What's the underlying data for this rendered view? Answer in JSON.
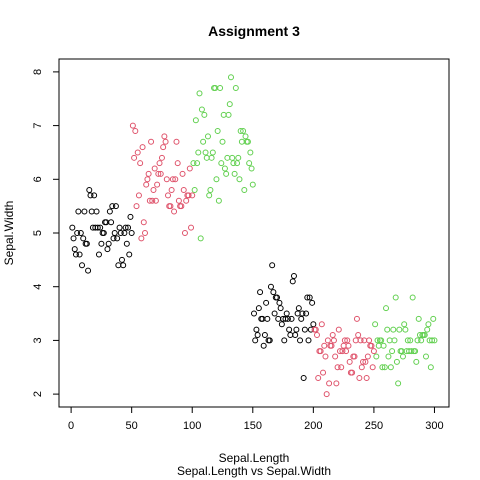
{
  "chart_data": {
    "type": "scatter",
    "title": "Assignment 3",
    "xlabel": "Sepal.Length",
    "ylabel": "Sepal.Width",
    "subtitle": "Sepal.Length vs Sepal.Width",
    "xlim": [
      -10,
      312
    ],
    "ylim": [
      1.76,
      8.24
    ],
    "xticks": [
      0,
      50,
      100,
      150,
      200,
      250,
      300
    ],
    "yticks": [
      2,
      3,
      4,
      5,
      6,
      7,
      8
    ],
    "grid": false,
    "marker": "open-circle",
    "series": [
      {
        "color": "#000000",
        "points": [
          [
            1,
            5.1
          ],
          [
            2,
            4.9
          ],
          [
            3,
            4.7
          ],
          [
            4,
            4.6
          ],
          [
            5,
            5.0
          ],
          [
            6,
            5.4
          ],
          [
            7,
            4.6
          ],
          [
            8,
            5.0
          ],
          [
            9,
            4.4
          ],
          [
            10,
            4.9
          ],
          [
            11,
            5.4
          ],
          [
            12,
            4.8
          ],
          [
            13,
            4.8
          ],
          [
            14,
            4.3
          ],
          [
            15,
            5.8
          ],
          [
            16,
            5.7
          ],
          [
            17,
            5.4
          ],
          [
            18,
            5.1
          ],
          [
            19,
            5.7
          ],
          [
            20,
            5.1
          ],
          [
            21,
            5.4
          ],
          [
            22,
            5.1
          ],
          [
            23,
            4.6
          ],
          [
            24,
            5.1
          ],
          [
            25,
            4.8
          ],
          [
            26,
            5.0
          ],
          [
            27,
            5.0
          ],
          [
            28,
            5.2
          ],
          [
            29,
            5.2
          ],
          [
            30,
            4.7
          ],
          [
            31,
            4.8
          ],
          [
            32,
            5.4
          ],
          [
            33,
            5.2
          ],
          [
            34,
            5.5
          ],
          [
            35,
            4.9
          ],
          [
            36,
            5.0
          ],
          [
            37,
            5.5
          ],
          [
            38,
            4.9
          ],
          [
            39,
            4.4
          ],
          [
            40,
            5.1
          ],
          [
            41,
            5.0
          ],
          [
            42,
            4.5
          ],
          [
            43,
            4.4
          ],
          [
            44,
            5.0
          ],
          [
            45,
            5.1
          ],
          [
            46,
            4.8
          ],
          [
            47,
            5.1
          ],
          [
            48,
            4.6
          ],
          [
            49,
            5.3
          ],
          [
            50,
            5.0
          ],
          [
            151,
            3.5
          ],
          [
            152,
            3.0
          ],
          [
            153,
            3.2
          ],
          [
            154,
            3.1
          ],
          [
            155,
            3.6
          ],
          [
            156,
            3.9
          ],
          [
            157,
            3.4
          ],
          [
            158,
            3.4
          ],
          [
            159,
            2.9
          ],
          [
            160,
            3.1
          ],
          [
            161,
            3.7
          ],
          [
            162,
            3.4
          ],
          [
            163,
            3.0
          ],
          [
            164,
            3.0
          ],
          [
            165,
            4.0
          ],
          [
            166,
            4.4
          ],
          [
            167,
            3.9
          ],
          [
            168,
            3.5
          ],
          [
            169,
            3.8
          ],
          [
            170,
            3.8
          ],
          [
            171,
            3.4
          ],
          [
            172,
            3.7
          ],
          [
            173,
            3.6
          ],
          [
            174,
            3.3
          ],
          [
            175,
            3.4
          ],
          [
            176,
            3.0
          ],
          [
            177,
            3.4
          ],
          [
            178,
            3.5
          ],
          [
            179,
            3.4
          ],
          [
            180,
            3.2
          ],
          [
            181,
            3.1
          ],
          [
            182,
            3.4
          ],
          [
            183,
            4.1
          ],
          [
            184,
            4.2
          ],
          [
            185,
            3.1
          ],
          [
            186,
            3.2
          ],
          [
            187,
            3.5
          ],
          [
            188,
            3.6
          ],
          [
            189,
            3.0
          ],
          [
            190,
            3.4
          ],
          [
            191,
            3.5
          ],
          [
            192,
            2.3
          ],
          [
            193,
            3.2
          ],
          [
            194,
            3.5
          ],
          [
            195,
            3.8
          ],
          [
            196,
            3.0
          ],
          [
            197,
            3.8
          ],
          [
            198,
            3.2
          ],
          [
            199,
            3.7
          ],
          [
            200,
            3.3
          ]
        ]
      },
      {
        "color": "#DF536B",
        "points": [
          [
            51,
            7.0
          ],
          [
            52,
            6.4
          ],
          [
            53,
            6.9
          ],
          [
            54,
            5.5
          ],
          [
            55,
            6.5
          ],
          [
            56,
            5.7
          ],
          [
            57,
            6.3
          ],
          [
            58,
            4.9
          ],
          [
            59,
            6.6
          ],
          [
            60,
            5.2
          ],
          [
            61,
            5.0
          ],
          [
            62,
            5.9
          ],
          [
            63,
            6.0
          ],
          [
            64,
            6.1
          ],
          [
            65,
            5.6
          ],
          [
            66,
            6.7
          ],
          [
            67,
            5.6
          ],
          [
            68,
            5.8
          ],
          [
            69,
            6.2
          ],
          [
            70,
            5.6
          ],
          [
            71,
            5.9
          ],
          [
            72,
            6.1
          ],
          [
            73,
            6.3
          ],
          [
            74,
            6.1
          ],
          [
            75,
            6.4
          ],
          [
            76,
            6.6
          ],
          [
            77,
            6.8
          ],
          [
            78,
            6.7
          ],
          [
            79,
            6.0
          ],
          [
            80,
            5.7
          ],
          [
            81,
            5.5
          ],
          [
            82,
            5.5
          ],
          [
            83,
            5.8
          ],
          [
            84,
            6.0
          ],
          [
            85,
            5.4
          ],
          [
            86,
            6.0
          ],
          [
            87,
            6.7
          ],
          [
            88,
            6.3
          ],
          [
            89,
            5.6
          ],
          [
            90,
            5.5
          ],
          [
            91,
            5.5
          ],
          [
            92,
            6.1
          ],
          [
            93,
            5.8
          ],
          [
            94,
            5.0
          ],
          [
            95,
            5.6
          ],
          [
            96,
            5.7
          ],
          [
            97,
            5.7
          ],
          [
            98,
            6.2
          ],
          [
            99,
            5.1
          ],
          [
            100,
            5.7
          ],
          [
            201,
            3.2
          ],
          [
            202,
            3.2
          ],
          [
            203,
            3.1
          ],
          [
            204,
            2.3
          ],
          [
            205,
            2.8
          ],
          [
            206,
            2.8
          ],
          [
            207,
            3.3
          ],
          [
            208,
            2.4
          ],
          [
            209,
            2.9
          ],
          [
            210,
            2.7
          ],
          [
            211,
            2.0
          ],
          [
            212,
            3.0
          ],
          [
            213,
            2.2
          ],
          [
            214,
            2.9
          ],
          [
            215,
            2.9
          ],
          [
            216,
            3.1
          ],
          [
            217,
            3.0
          ],
          [
            218,
            2.7
          ],
          [
            219,
            2.2
          ],
          [
            220,
            2.5
          ],
          [
            221,
            3.2
          ],
          [
            222,
            2.8
          ],
          [
            223,
            2.5
          ],
          [
            224,
            2.8
          ],
          [
            225,
            2.9
          ],
          [
            226,
            3.0
          ],
          [
            227,
            2.8
          ],
          [
            228,
            3.0
          ],
          [
            229,
            2.9
          ],
          [
            230,
            2.6
          ],
          [
            231,
            2.4
          ],
          [
            232,
            2.4
          ],
          [
            233,
            2.7
          ],
          [
            234,
            2.7
          ],
          [
            235,
            3.0
          ],
          [
            236,
            3.4
          ],
          [
            237,
            3.1
          ],
          [
            238,
            2.3
          ],
          [
            239,
            3.0
          ],
          [
            240,
            2.5
          ],
          [
            241,
            2.6
          ],
          [
            242,
            3.0
          ],
          [
            243,
            2.6
          ],
          [
            244,
            2.3
          ],
          [
            245,
            2.7
          ],
          [
            246,
            3.0
          ],
          [
            247,
            2.9
          ],
          [
            248,
            2.9
          ],
          [
            249,
            2.5
          ],
          [
            250,
            2.8
          ]
        ]
      },
      {
        "color": "#61D04F",
        "points": [
          [
            101,
            6.3
          ],
          [
            102,
            5.8
          ],
          [
            103,
            7.1
          ],
          [
            104,
            6.3
          ],
          [
            105,
            6.5
          ],
          [
            106,
            7.6
          ],
          [
            107,
            4.9
          ],
          [
            108,
            7.3
          ],
          [
            109,
            6.7
          ],
          [
            110,
            7.2
          ],
          [
            111,
            6.5
          ],
          [
            112,
            6.4
          ],
          [
            113,
            6.8
          ],
          [
            114,
            5.7
          ],
          [
            115,
            5.8
          ],
          [
            116,
            6.4
          ],
          [
            117,
            6.5
          ],
          [
            118,
            7.7
          ],
          [
            119,
            7.7
          ],
          [
            120,
            6.0
          ],
          [
            121,
            6.9
          ],
          [
            122,
            5.6
          ],
          [
            123,
            7.7
          ],
          [
            124,
            6.3
          ],
          [
            125,
            6.7
          ],
          [
            126,
            7.2
          ],
          [
            127,
            6.2
          ],
          [
            128,
            6.1
          ],
          [
            129,
            6.4
          ],
          [
            130,
            7.2
          ],
          [
            131,
            7.4
          ],
          [
            132,
            7.9
          ],
          [
            133,
            6.4
          ],
          [
            134,
            6.3
          ],
          [
            135,
            6.1
          ],
          [
            136,
            7.7
          ],
          [
            137,
            6.3
          ],
          [
            138,
            6.4
          ],
          [
            139,
            6.0
          ],
          [
            140,
            6.9
          ],
          [
            141,
            6.7
          ],
          [
            142,
            6.9
          ],
          [
            143,
            5.8
          ],
          [
            144,
            6.8
          ],
          [
            145,
            6.7
          ],
          [
            146,
            6.7
          ],
          [
            147,
            6.3
          ],
          [
            148,
            6.5
          ],
          [
            149,
            6.2
          ],
          [
            150,
            5.9
          ],
          [
            251,
            3.3
          ],
          [
            252,
            2.7
          ],
          [
            253,
            3.0
          ],
          [
            254,
            2.9
          ],
          [
            255,
            3.0
          ],
          [
            256,
            3.0
          ],
          [
            257,
            2.5
          ],
          [
            258,
            2.9
          ],
          [
            259,
            2.5
          ],
          [
            260,
            3.6
          ],
          [
            261,
            3.2
          ],
          [
            262,
            2.7
          ],
          [
            263,
            3.0
          ],
          [
            264,
            2.5
          ],
          [
            265,
            2.8
          ],
          [
            266,
            3.2
          ],
          [
            267,
            3.0
          ],
          [
            268,
            3.8
          ],
          [
            269,
            2.6
          ],
          [
            270,
            2.2
          ],
          [
            271,
            3.2
          ],
          [
            272,
            2.8
          ],
          [
            273,
            2.8
          ],
          [
            274,
            2.7
          ],
          [
            275,
            3.3
          ],
          [
            276,
            3.2
          ],
          [
            277,
            2.8
          ],
          [
            278,
            3.0
          ],
          [
            279,
            2.8
          ],
          [
            280,
            3.0
          ],
          [
            281,
            2.8
          ],
          [
            282,
            3.8
          ],
          [
            283,
            2.8
          ],
          [
            284,
            2.8
          ],
          [
            285,
            2.6
          ],
          [
            286,
            3.0
          ],
          [
            287,
            3.4
          ],
          [
            288,
            3.1
          ],
          [
            289,
            3.0
          ],
          [
            290,
            3.1
          ],
          [
            291,
            3.1
          ],
          [
            292,
            3.1
          ],
          [
            293,
            2.7
          ],
          [
            294,
            3.2
          ],
          [
            295,
            3.3
          ],
          [
            296,
            3.0
          ],
          [
            297,
            2.5
          ],
          [
            298,
            3.0
          ],
          [
            299,
            3.4
          ],
          [
            300,
            3.0
          ]
        ]
      }
    ]
  }
}
